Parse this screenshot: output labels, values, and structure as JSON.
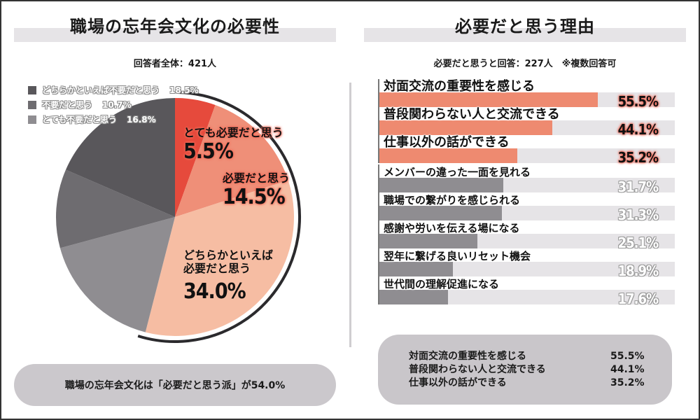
{
  "left_panel": {
    "title": "職場の忘年会文化の必要性",
    "subtitle": "回答者全体：421人",
    "legend": [
      {
        "label": "どちらかといえば不要だと思う",
        "pct": "18.5%",
        "color": "#59575b"
      },
      {
        "label": "不要だと思う",
        "pct": "10.7%",
        "color": "#6e6c70"
      },
      {
        "label": "とても不要だと思う",
        "pct": "16.8%",
        "color": "#8f8d91"
      }
    ],
    "pie_labels": [
      {
        "label": "とても必要だと思う",
        "pct": "5.5%"
      },
      {
        "label": "必要だと思う",
        "pct": "14.5%"
      },
      {
        "label_line1": "どちらかといえば",
        "label_line2": "必要だと思う",
        "pct": "34.0%"
      }
    ],
    "summary": "職場の忘年会文化は「必要だと思う派」が54.0%"
  },
  "right_panel": {
    "title": "必要だと思う理由",
    "subtitle": "必要だと思うと回答：227人　※複数回答可",
    "bars": [
      {
        "label": "対面交流の重要性を感じる",
        "pct": "55.5%"
      },
      {
        "label": "普段関わらない人と交流できる",
        "pct": "44.1%"
      },
      {
        "label": "仕事以外の話ができる",
        "pct": "35.2%"
      },
      {
        "label": "メンバーの違った一面を見れる",
        "pct": "31.7%"
      },
      {
        "label": "職場での繋がりを感じられる",
        "pct": "31.3%"
      },
      {
        "label": "感謝や労いを伝える場になる",
        "pct": "25.1%"
      },
      {
        "label": "翌年に繋げる良いリセット機会",
        "pct": "18.9%"
      },
      {
        "label": "世代間の理解促進になる",
        "pct": "17.6%"
      }
    ],
    "top3": [
      {
        "label": "対面交流の重要性を感じる",
        "pct": "55.5%"
      },
      {
        "label": "普段関わらない人と交流できる",
        "pct": "44.1%"
      },
      {
        "label": "仕事以外の話ができる",
        "pct": "35.2%"
      }
    ]
  },
  "colors": {
    "very_necessary": "#e64a3c",
    "necessary": "#ef8f78",
    "somewhat_necessary": "#f6bda3",
    "somewhat_unnecessary": "#59575b",
    "unnecessary": "#6e6c70",
    "very_unnecessary": "#8f8d91",
    "bar_top": "#ee8a70",
    "bar_rest": "#8f8d91",
    "bar_track": "#e6e4e7"
  },
  "chart_data": [
    {
      "type": "pie",
      "title": "職場の忘年会文化の必要性",
      "subtitle": "回答者全体：421人",
      "categories": [
        "とても必要だと思う",
        "必要だと思う",
        "どちらかといえば必要だと思う",
        "とても不要だと思う",
        "不要だと思う",
        "どちらかといえば不要だと思う"
      ],
      "values": [
        5.5,
        14.5,
        34.0,
        16.8,
        10.7,
        18.5
      ],
      "unit": "%",
      "start_angle": "12 o'clock, clockwise",
      "annotation": "職場の忘年会文化は「必要だと思う派」が54.0%"
    },
    {
      "type": "bar",
      "orientation": "horizontal",
      "title": "必要だと思う理由",
      "subtitle": "必要だと思うと回答：227人　※複数回答可",
      "categories": [
        "対面交流の重要性を感じる",
        "普段関わらない人と交流できる",
        "仕事以外の話ができる",
        "メンバーの違った一面を見れる",
        "職場での繋がりを感じられる",
        "感謝や労いを伝える場になる",
        "翌年に繋げる良いリセット機会",
        "世代間の理解促進になる"
      ],
      "values": [
        55.5,
        44.1,
        35.2,
        31.7,
        31.3,
        25.1,
        18.9,
        17.6
      ],
      "unit": "%",
      "xlim": [
        0,
        75
      ],
      "highlighted_top": 3
    }
  ]
}
